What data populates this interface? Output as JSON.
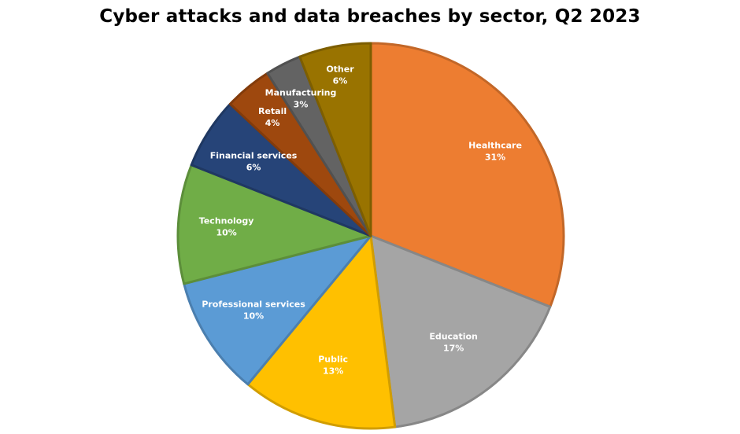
{
  "chart_data": {
    "type": "pie",
    "title": "Cyber attacks and data breaches by sector, Q2 2023",
    "slices": [
      {
        "label": "Healthcare",
        "value": 31,
        "pct_label": "31%",
        "color": "#ED7D31"
      },
      {
        "label": "Education",
        "value": 17,
        "pct_label": "17%",
        "color": "#A5A5A5"
      },
      {
        "label": "Public",
        "value": 13,
        "pct_label": "13%",
        "color": "#FFC000"
      },
      {
        "label": "Professional services",
        "value": 10,
        "pct_label": "10%",
        "color": "#5B9BD5"
      },
      {
        "label": "Technology",
        "value": 10,
        "pct_label": "10%",
        "color": "#70AD47"
      },
      {
        "label": "Financial services",
        "value": 6,
        "pct_label": "6%",
        "color": "#264478"
      },
      {
        "label": "Retail",
        "value": 4,
        "pct_label": "4%",
        "color": "#9E480E"
      },
      {
        "label": "Manufacturing",
        "value": 3,
        "pct_label": "3%",
        "color": "#636363"
      },
      {
        "label": "Other",
        "value": 6,
        "pct_label": "6%",
        "color": "#997300"
      }
    ]
  }
}
